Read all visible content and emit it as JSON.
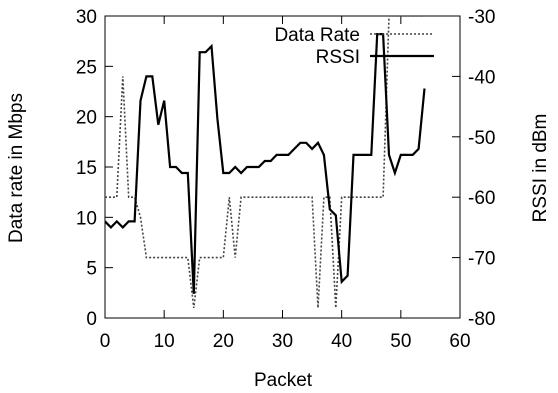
{
  "chart_data": {
    "type": "line",
    "xlabel": "Packet",
    "ylabel": "Data rate in Mbps",
    "y2label": "RSSI in dBm",
    "xlim": [
      0,
      60
    ],
    "ylim": [
      0,
      30
    ],
    "y2lim": [
      -80,
      -30
    ],
    "xticks": [
      "0",
      "10",
      "20",
      "30",
      "40",
      "50",
      "60"
    ],
    "yticks": [
      "0",
      "5",
      "10",
      "15",
      "20",
      "25",
      "30"
    ],
    "y2ticks": [
      "-80",
      "-70",
      "-60",
      "-50",
      "-40",
      "-30"
    ],
    "grid": false,
    "legend_position": "top-right",
    "series": [
      {
        "name": "Data Rate",
        "axis": "left",
        "style": "dotted",
        "color": "#444444",
        "x": [
          0,
          2,
          3,
          4,
          5,
          6,
          7,
          14,
          15,
          16,
          20,
          21,
          22,
          23,
          35,
          36,
          37,
          38,
          39,
          40,
          47,
          48,
          54
        ],
        "y": [
          12,
          12,
          24,
          12,
          12,
          10,
          6,
          6,
          1,
          6,
          6,
          12,
          6,
          12,
          12,
          1,
          12,
          12,
          1,
          12,
          12,
          30,
          30
        ]
      },
      {
        "name": "RSSI",
        "axis": "right",
        "style": "solid",
        "color": "#000000",
        "x": [
          0,
          1,
          2,
          3,
          4,
          5,
          6,
          7,
          8,
          9,
          10,
          11,
          12,
          13,
          14,
          15,
          16,
          17,
          18,
          19,
          20,
          21,
          22,
          23,
          24,
          25,
          26,
          27,
          28,
          29,
          30,
          31,
          32,
          33,
          34,
          35,
          36,
          37,
          38,
          39,
          40,
          41,
          42,
          43,
          44,
          45,
          46,
          47,
          48,
          49,
          50,
          51,
          52,
          53,
          54
        ],
        "y": [
          -64,
          -65,
          -64,
          -65,
          -64,
          -64,
          -44,
          -40,
          -40,
          -48,
          -44,
          -55,
          -55,
          -56,
          -56,
          -76,
          -36,
          -36,
          -35,
          -47,
          -56,
          -56,
          -55,
          -56,
          -55,
          -55,
          -55,
          -54,
          -54,
          -53,
          -53,
          -53,
          -52,
          -51,
          -51,
          -52,
          -51,
          -53,
          -62,
          -63,
          -74,
          -73,
          -53,
          -53,
          -53,
          -53,
          -33,
          -33,
          -53,
          -56,
          -53,
          -53,
          -53,
          -52,
          -42
        ]
      }
    ]
  }
}
